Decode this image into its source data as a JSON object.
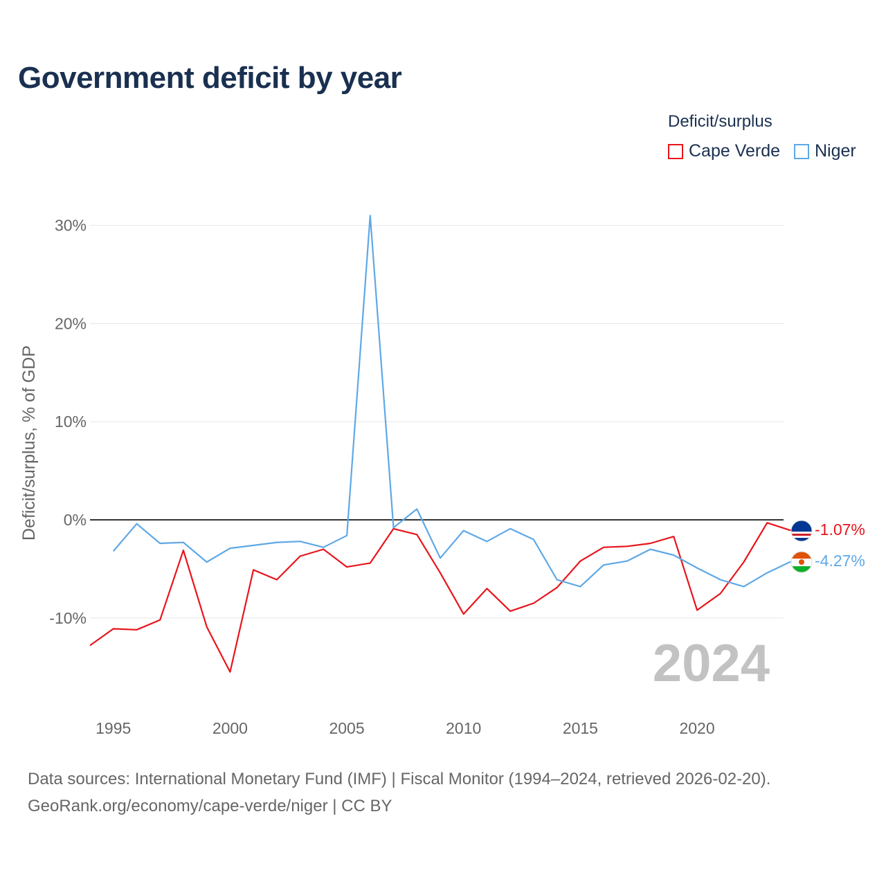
{
  "chart_data": {
    "type": "line",
    "title": "Government deficit by year",
    "ylabel": "Deficit/surplus, % of GDP",
    "xlabel": "",
    "legend_title": "Deficit/surplus",
    "legend_position": "top-right",
    "xlim": [
      1994,
      2024
    ],
    "ylim": [
      -18,
      32
    ],
    "y_ticks": [
      30,
      20,
      10,
      0,
      -10
    ],
    "y_tick_labels": [
      "30%",
      "20%",
      "10%",
      "0%",
      "-10%"
    ],
    "x_ticks": [
      1995,
      2000,
      2005,
      2010,
      2015,
      2020
    ],
    "x_tick_labels": [
      "1995",
      "2000",
      "2005",
      "2010",
      "2015",
      "2020"
    ],
    "year_watermark": "2024",
    "series": [
      {
        "name": "Cape Verde",
        "color": "#e8141b",
        "end_label": "-1.07%",
        "flag": "cape-verde-flag",
        "x": [
          1994,
          1995,
          1996,
          1997,
          1998,
          1999,
          2000,
          2001,
          2002,
          2003,
          2004,
          2005,
          2006,
          2007,
          2008,
          2009,
          2010,
          2011,
          2012,
          2013,
          2014,
          2015,
          2016,
          2017,
          2018,
          2019,
          2020,
          2021,
          2022,
          2023,
          2024
        ],
        "values": [
          -12.8,
          -11.1,
          -11.2,
          -10.2,
          -3.1,
          -10.9,
          -15.5,
          -5.1,
          -6.1,
          -3.7,
          -3.0,
          -4.8,
          -4.4,
          -0.9,
          -1.5,
          -5.4,
          -9.6,
          -7.0,
          -9.3,
          -8.5,
          -6.9,
          -4.2,
          -2.8,
          -2.7,
          -2.4,
          -1.7,
          -9.2,
          -7.5,
          -4.3,
          -0.3,
          -1.07
        ]
      },
      {
        "name": "Niger",
        "color": "#5ea8e6",
        "end_label": "-4.27%",
        "flag": "niger-flag",
        "x": [
          1995,
          1996,
          1997,
          1998,
          1999,
          2000,
          2001,
          2002,
          2003,
          2004,
          2005,
          2006,
          2007,
          2008,
          2009,
          2010,
          2011,
          2012,
          2013,
          2014,
          2015,
          2016,
          2017,
          2018,
          2019,
          2020,
          2021,
          2022,
          2023,
          2024
        ],
        "values": [
          -3.2,
          -0.4,
          -2.4,
          -2.3,
          -4.3,
          -2.9,
          -2.6,
          -2.3,
          -2.2,
          -2.8,
          -1.6,
          31.0,
          -0.8,
          1.1,
          -3.9,
          -1.1,
          -2.2,
          -0.9,
          -2.0,
          -6.1,
          -6.8,
          -4.6,
          -4.2,
          -3.0,
          -3.6,
          -4.9,
          -6.1,
          -6.8,
          -5.4,
          -4.27
        ]
      }
    ]
  },
  "source": {
    "line1": "Data sources: International Monetary Fund (IMF) | Fiscal Monitor (1994–2024, retrieved 2026-02-20).",
    "line2": "GeoRank.org/economy/cape-verde/niger | CC BY"
  }
}
